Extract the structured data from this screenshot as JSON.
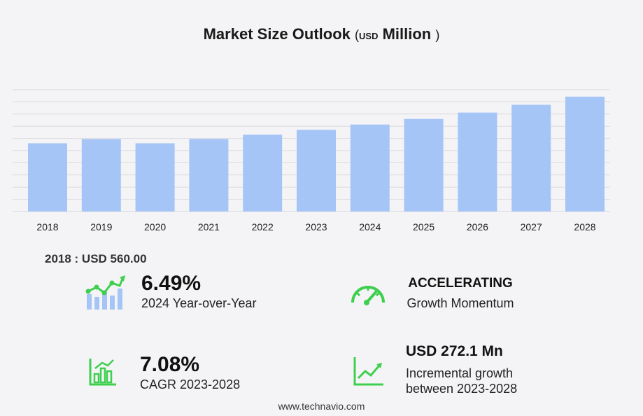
{
  "header": {
    "title": "Market Size Outlook",
    "paren_open": "(",
    "unit": "USD",
    "unit_word": "Million",
    "paren_close": ")"
  },
  "base_year": {
    "text": "2018 : USD  560.00"
  },
  "metrics": {
    "yoy": {
      "value": "6.49%",
      "label": "2024 Year-over-Year"
    },
    "momentum": {
      "value": "ACCELERATING",
      "label": "Growth Momentum"
    },
    "cagr": {
      "value": "7.08%",
      "label": "CAGR 2023-2028"
    },
    "incremental": {
      "value": "USD 272.1 Mn",
      "label_line1": "Incremental growth",
      "label_line2": "between 2023-2028"
    }
  },
  "icons": {
    "yoy": "growth-chart-icon",
    "momentum": "speedometer-icon",
    "cagr": "bar-chart-icon",
    "incremental": "trend-line-icon"
  },
  "colors": {
    "bar": "#a5c5f7",
    "icon_green": "#3fcf4f",
    "icon_blue": "#a5c5f7",
    "grid": "#d9d9de"
  },
  "footer": {
    "url": "www.technavio.com"
  },
  "chart_data": {
    "type": "bar",
    "title": "Market Size Outlook",
    "ylabel": "USD Million",
    "categories": [
      "2018",
      "2019",
      "2020",
      "2021",
      "2022",
      "2023",
      "2024",
      "2025",
      "2026",
      "2027",
      "2028"
    ],
    "values": [
      560.0,
      594.0,
      560.0,
      595.0,
      630.0,
      670.0,
      713.5,
      760.0,
      812.0,
      876.0,
      942.1
    ],
    "ylim": [
      0,
      1000
    ],
    "grid": true,
    "legend": "none"
  }
}
